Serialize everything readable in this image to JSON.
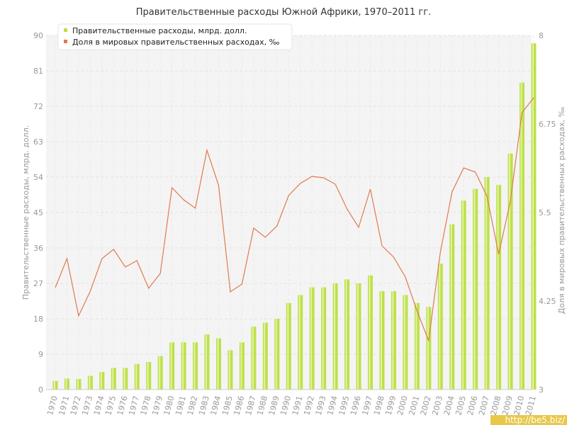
{
  "chart_data": {
    "type": "bar+line",
    "title": "Правительственные расходы Южной Африки, 1970–2011 гг.",
    "ylabel_left": "Правительственные расходы, млрд. долл.",
    "ylabel_right": "Доля в мировых правительственных расходах, ‰",
    "ylim_left": [
      0,
      90
    ],
    "yticks_left": [
      "0",
      "9",
      "18",
      "27",
      "36",
      "45",
      "54",
      "63",
      "72",
      "81",
      "90"
    ],
    "ylim_right": [
      3,
      8
    ],
    "yticks_right": [
      "3",
      "4.25",
      "5.5",
      "6.75",
      "8"
    ],
    "grid": true,
    "legend_position": "top-left",
    "categories": [
      "1970",
      "1971",
      "1972",
      "1973",
      "1974",
      "1975",
      "1976",
      "1977",
      "1978",
      "1979",
      "1980",
      "1981",
      "1982",
      "1983",
      "1984",
      "1985",
      "1986",
      "1987",
      "1988",
      "1989",
      "1990",
      "1991",
      "1992",
      "1993",
      "1994",
      "1995",
      "1996",
      "1997",
      "1998",
      "1999",
      "2000",
      "2001",
      "2002",
      "2003",
      "2004",
      "2005",
      "2006",
      "2007",
      "2008",
      "2009",
      "2010",
      "2011"
    ],
    "series": [
      {
        "name": "Правительственные расходы, млрд. долл.",
        "type": "bar",
        "axis": "left",
        "color": "#bde04a",
        "values": [
          2.2,
          2.8,
          2.7,
          3.5,
          4.5,
          5.5,
          5.5,
          6.5,
          7,
          8.5,
          12,
          12,
          12,
          14,
          13,
          10,
          12,
          16,
          17,
          18,
          22,
          24,
          26,
          26,
          27,
          28,
          27,
          29,
          25,
          25,
          24,
          22,
          21,
          32,
          42,
          48,
          51,
          54,
          52,
          60,
          78,
          88
        ]
      },
      {
        "name": "Доля в мировых правительственных расходах, ‰",
        "type": "line",
        "axis": "right",
        "color": "#e07a50",
        "values": [
          4.44,
          4.85,
          4.04,
          4.39,
          4.85,
          4.98,
          4.73,
          4.82,
          4.43,
          4.64,
          5.85,
          5.68,
          5.56,
          6.38,
          5.88,
          4.38,
          4.49,
          5.28,
          5.15,
          5.31,
          5.74,
          5.91,
          6.01,
          5.99,
          5.9,
          5.55,
          5.29,
          5.83,
          5.03,
          4.87,
          4.59,
          4.11,
          3.69,
          4.94,
          5.79,
          6.13,
          6.07,
          5.73,
          4.91,
          5.66,
          6.91,
          7.12
        ]
      }
    ]
  },
  "watermark": "http://be5.biz/"
}
